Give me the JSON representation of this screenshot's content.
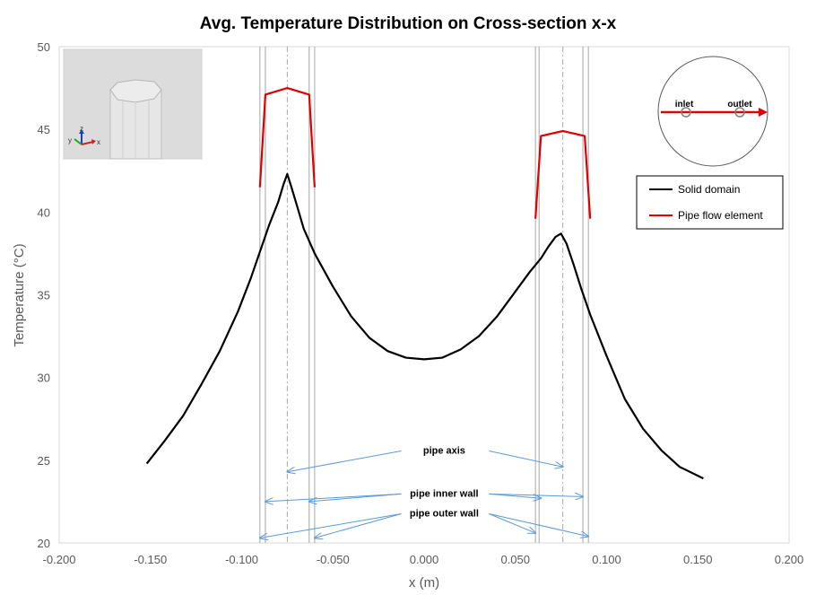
{
  "chart_data": {
    "type": "line",
    "title": "Avg. Temperature Distribution on Cross-section x-x",
    "xlabel": "x (m)",
    "ylabel": "Temperature (°C)",
    "xlim": [
      -0.2,
      0.2
    ],
    "ylim": [
      20,
      50
    ],
    "x_ticks": [
      "-0.200",
      "-0.150",
      "-0.100",
      "-0.050",
      "0.000",
      "0.050",
      "0.100",
      "0.150",
      "0.200"
    ],
    "x_tick_values": [
      -0.2,
      -0.15,
      -0.1,
      -0.05,
      0.0,
      0.05,
      0.1,
      0.15,
      0.2
    ],
    "y_ticks": [
      "20",
      "25",
      "30",
      "35",
      "40",
      "45",
      "50"
    ],
    "y_tick_values": [
      20,
      25,
      30,
      35,
      40,
      45,
      50
    ],
    "grid": false,
    "legend_position": "right",
    "series": [
      {
        "name": "Solid domain",
        "color": "#000000",
        "x": [
          -0.152,
          -0.142,
          -0.132,
          -0.122,
          -0.112,
          -0.102,
          -0.095,
          -0.09,
          -0.085,
          -0.08,
          -0.077,
          -0.075,
          -0.073,
          -0.07,
          -0.066,
          -0.06,
          -0.05,
          -0.04,
          -0.03,
          -0.02,
          -0.01,
          0.0,
          0.01,
          0.02,
          0.03,
          0.04,
          0.05,
          0.058,
          0.064,
          0.068,
          0.072,
          0.075,
          0.078,
          0.082,
          0.086,
          0.091,
          0.1,
          0.11,
          0.12,
          0.13,
          0.14,
          0.153
        ],
        "y": [
          24.8,
          26.2,
          27.7,
          29.6,
          31.6,
          34.0,
          36.0,
          37.6,
          39.2,
          40.6,
          41.7,
          42.3,
          41.6,
          40.5,
          39.0,
          37.5,
          35.5,
          33.7,
          32.4,
          31.6,
          31.2,
          31.1,
          31.2,
          31.7,
          32.5,
          33.7,
          35.2,
          36.4,
          37.2,
          37.9,
          38.5,
          38.7,
          38.1,
          36.8,
          35.4,
          33.8,
          31.3,
          28.7,
          26.9,
          25.6,
          24.6,
          23.9
        ]
      },
      {
        "name": "Pipe flow element",
        "color": "#e00000",
        "segments": [
          {
            "x": [
              -0.09,
              -0.087,
              -0.075,
              -0.063,
              -0.06
            ],
            "y": [
              41.5,
              47.1,
              47.5,
              47.1,
              41.5
            ]
          },
          {
            "x": [
              0.061,
              0.064,
              0.076,
              0.088,
              0.091
            ],
            "y": [
              39.6,
              44.6,
              44.9,
              44.6,
              39.6
            ]
          }
        ]
      }
    ],
    "reference_lines": {
      "pipe_outer_walls_x": [
        -0.09,
        -0.06,
        0.061,
        0.09
      ],
      "pipe_inner_walls_x": [
        -0.087,
        -0.063,
        0.063,
        0.087
      ],
      "pipe_axes_x": [
        -0.075,
        0.076
      ]
    },
    "annotations": [
      {
        "text": "pipe axis",
        "text_at": [
          0.011,
          25.4
        ],
        "targets": [
          [
            -0.075,
            24.3
          ],
          [
            0.076,
            24.6
          ]
        ]
      },
      {
        "text": "pipe inner wall",
        "text_at": [
          0.011,
          22.8
        ],
        "targets": [
          [
            -0.087,
            22.5
          ],
          [
            -0.063,
            22.5
          ],
          [
            0.064,
            22.7
          ],
          [
            0.087,
            22.8
          ]
        ]
      },
      {
        "text": "pipe outer wall",
        "text_at": [
          0.011,
          21.6
        ],
        "targets": [
          [
            -0.09,
            20.3
          ],
          [
            -0.06,
            20.3
          ],
          [
            0.061,
            20.6
          ],
          [
            0.09,
            20.4
          ]
        ]
      }
    ]
  },
  "legend": {
    "items": [
      {
        "label": "Solid domain",
        "color": "#000000"
      },
      {
        "label": "Pipe flow element",
        "color": "#e00000"
      }
    ]
  },
  "inset_3d": {
    "axes": {
      "x": "x",
      "y": "y",
      "z": "z"
    }
  },
  "inset_section": {
    "inlet_label": "inlet",
    "outlet_label": "outlet"
  },
  "colors": {
    "solid": "#000000",
    "pipe": "#e00000",
    "annotation": "#5b9bd5",
    "wall_line": "#a6a6a6",
    "axis_line": "#a6a6a6"
  }
}
